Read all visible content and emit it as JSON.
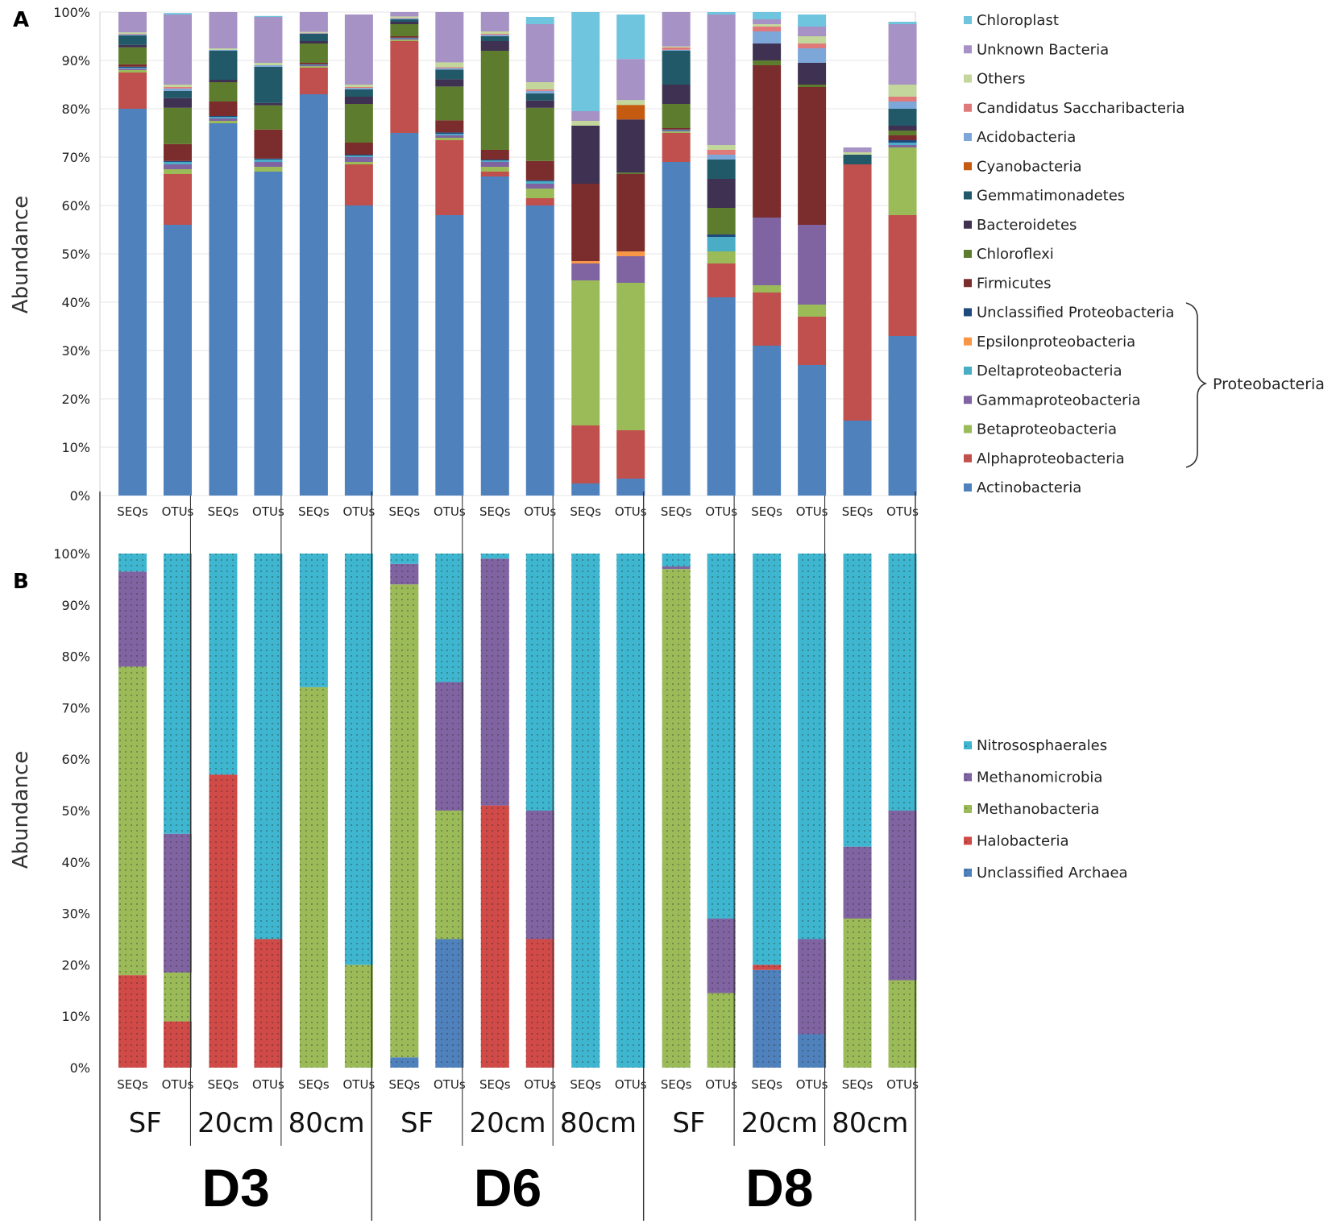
{
  "panels": {
    "a_label": "A",
    "b_label": "B"
  },
  "groups": {
    "depths": [
      "SF",
      "20cm",
      "80cm",
      "SF",
      "20cm",
      "80cm",
      "SF",
      "20cm",
      "80cm"
    ],
    "sites": [
      "D3",
      "D6",
      "D8"
    ],
    "bar_labels": [
      "SEQs",
      "OTUs"
    ]
  },
  "brace_label": "Proteobacteria",
  "chart_data": [
    {
      "type": "bar",
      "stacked": true,
      "panel": "A",
      "ylabel": "Abundance",
      "ylim": [
        0,
        100
      ],
      "yticks": [
        "0%",
        "10%",
        "20%",
        "30%",
        "40%",
        "50%",
        "60%",
        "70%",
        "80%",
        "90%",
        "100%"
      ],
      "categories": [
        "SEQs",
        "OTUs",
        "SEQs",
        "OTUs",
        "SEQs",
        "OTUs",
        "SEQs",
        "OTUs",
        "SEQs",
        "OTUs",
        "SEQs",
        "OTUs",
        "SEQs",
        "OTUs",
        "SEQs",
        "OTUs",
        "SEQs",
        "OTUs"
      ],
      "legend": [
        "Chloroplast",
        "Unknown  Bacteria",
        "Others",
        "Candidatus Saccharibacteria",
        "Acidobacteria",
        "Cyanobacteria",
        "Gemmatimonadetes",
        "Bacteroidetes",
        "Chloroflexi",
        "Firmicutes",
        "Unclassified Proteobacteria",
        "Epsilonproteobacteria",
        "Deltaproteobacteria",
        "Gammaproteobacteria",
        "Betaproteobacteria",
        "Alphaproteobacteria",
        "Actinobacteria"
      ],
      "series": [
        {
          "name": "Actinobacteria",
          "color": "#4f81bd",
          "values": [
            80,
            56,
            77,
            67,
            83,
            60,
            75,
            58,
            66,
            60,
            2.5,
            3.5,
            69,
            41,
            31,
            27,
            15.5,
            33
          ]
        },
        {
          "name": "Alphaproteobacteria",
          "color": "#c0504d",
          "values": [
            7.5,
            10.5,
            0,
            0,
            5.5,
            8.5,
            19,
            15.5,
            1,
            1.5,
            12,
            10,
            6,
            7,
            11,
            10,
            53,
            25
          ]
        },
        {
          "name": "Betaproteobacteria",
          "color": "#9bbb59",
          "values": [
            0.5,
            1,
            0.5,
            1,
            0.3,
            0.5,
            0.3,
            0.5,
            1,
            2,
            30,
            30.5,
            0.3,
            2.5,
            1.5,
            2.5,
            0,
            14
          ]
        },
        {
          "name": "Gammaproteobacteria",
          "color": "#8064a2",
          "values": [
            0.3,
            1,
            0.5,
            1,
            0.2,
            1,
            0.2,
            0.5,
            1,
            1,
            3.5,
            5.5,
            0.2,
            0,
            14,
            16.5,
            0,
            0.5
          ]
        },
        {
          "name": "Deltaproteobacteria",
          "color": "#4bacc6",
          "values": [
            0.2,
            0.5,
            0.3,
            0.5,
            0.1,
            0.3,
            0.1,
            0.3,
            0.3,
            0.5,
            0,
            0,
            0.1,
            3,
            0,
            0,
            0,
            0.5
          ]
        },
        {
          "name": "Epsilonproteobacteria",
          "color": "#f79646",
          "values": [
            0,
            0,
            0,
            0,
            0,
            0,
            0,
            0,
            0,
            0,
            0.5,
            1,
            0,
            0,
            0,
            0,
            0,
            0
          ]
        },
        {
          "name": "Unclassified Proteobacteria",
          "color": "#1f497d",
          "values": [
            0.2,
            0.2,
            0.2,
            0.2,
            0.1,
            0.2,
            0.1,
            0.3,
            0.2,
            0.2,
            0,
            0,
            0.1,
            0.5,
            0,
            0,
            0,
            0.5
          ]
        },
        {
          "name": "Firmicutes",
          "color": "#7b2c2c",
          "values": [
            0.5,
            3.5,
            3,
            6,
            0.3,
            2.5,
            0.3,
            2.5,
            2,
            4,
            16,
            16,
            0.3,
            0,
            31.5,
            28.5,
            0,
            1
          ]
        },
        {
          "name": "Chloroflexi",
          "color": "#5e7c2e",
          "values": [
            3.5,
            7.5,
            4,
            5,
            4,
            8,
            2.5,
            7,
            20.5,
            11,
            0,
            0.3,
            5,
            5.5,
            1,
            0.5,
            0,
            1
          ]
        },
        {
          "name": "Bacteroidetes",
          "color": "#3f3151",
          "values": [
            0.5,
            2,
            0.5,
            0.5,
            0.5,
            1.5,
            0.5,
            1.5,
            2,
            1.5,
            12,
            11,
            4,
            6,
            3.5,
            4.5,
            0,
            1
          ]
        },
        {
          "name": "Gemmatimonadetes",
          "color": "#215968",
          "values": [
            2,
            1.5,
            6,
            7.5,
            1.5,
            1.5,
            0.5,
            2,
            1,
            1.5,
            0,
            0,
            7,
            4,
            0,
            0,
            2,
            3.5
          ]
        },
        {
          "name": "Cyanobacteria",
          "color": "#c55a11",
          "values": [
            0,
            0,
            0,
            0,
            0,
            0,
            0,
            0,
            0,
            0,
            0,
            3,
            0,
            0,
            0,
            0,
            0,
            0
          ]
        },
        {
          "name": "Acidobacteria",
          "color": "#7da7d9",
          "values": [
            0.2,
            0.5,
            0.2,
            0.3,
            0.1,
            0.3,
            0.2,
            0.3,
            0.3,
            0.5,
            0,
            0,
            0.2,
            1,
            2.5,
            3,
            0,
            1.5
          ]
        },
        {
          "name": "Candidatus Saccharibacteria",
          "color": "#e07a7a",
          "values": [
            0.1,
            0.3,
            0,
            0,
            0.1,
            0.2,
            0.1,
            0.2,
            0.2,
            0.3,
            0,
            0,
            0.5,
            1,
            1,
            1,
            0,
            1
          ]
        },
        {
          "name": "Others",
          "color": "#c3d69b",
          "values": [
            0.3,
            0.5,
            0.3,
            0.5,
            0.2,
            0.5,
            0.3,
            1,
            0.5,
            1.5,
            1,
            1,
            0.2,
            1,
            0.5,
            1.5,
            0.5,
            2.5
          ]
        },
        {
          "name": "Unknown  Bacteria",
          "color": "#a692c4",
          "values": [
            4.2,
            14.5,
            7.5,
            9.5,
            4.4,
            14.5,
            1.6,
            10.9,
            4,
            12,
            2,
            8.5,
            7.1,
            27,
            1,
            2,
            1,
            12.5
          ]
        },
        {
          "name": "Chloroplast",
          "color": "#6ec5dd",
          "values": [
            0,
            0.3,
            0,
            0.2,
            0.1,
            0,
            0.2,
            0.5,
            0,
            1.5,
            20.5,
            9.2,
            0.1,
            0.5,
            2.5,
            2.5,
            0,
            0.5
          ]
        }
      ]
    },
    {
      "type": "bar",
      "stacked": true,
      "panel": "B",
      "ylabel": "Abundance",
      "ylim": [
        0,
        100
      ],
      "yticks": [
        "0%",
        "10%",
        "20%",
        "30%",
        "40%",
        "50%",
        "60%",
        "70%",
        "80%",
        "90%",
        "100%"
      ],
      "categories": [
        "SEQs",
        "OTUs",
        "SEQs",
        "OTUs",
        "SEQs",
        "OTUs",
        "SEQs",
        "OTUs",
        "SEQs",
        "OTUs",
        "SEQs",
        "OTUs",
        "SEQs",
        "OTUs",
        "SEQs",
        "OTUs",
        "SEQs",
        "OTUs"
      ],
      "legend": [
        "Nitrososphaerales",
        "Methanomicrobia",
        "Methanobacteria",
        "Halobacteria",
        "Unclassified Archaea"
      ],
      "series": [
        {
          "name": "Unclassified Archaea",
          "color": "#4f81bd",
          "values": [
            0,
            0,
            0,
            0,
            0,
            0,
            2,
            25,
            0,
            0,
            0,
            0,
            0,
            0,
            19,
            6.5,
            0,
            0
          ]
        },
        {
          "name": "Halobacteria",
          "color": "#d04a47",
          "values": [
            18,
            9,
            57,
            25,
            0,
            0,
            0,
            0,
            51,
            25,
            0,
            0,
            0,
            0,
            1,
            0,
            0,
            0
          ]
        },
        {
          "name": "Methanobacteria",
          "color": "#9bbb59",
          "values": [
            60,
            9.5,
            0,
            0,
            74,
            20,
            92,
            25,
            0,
            0,
            0,
            0,
            97,
            14.5,
            0,
            0,
            29,
            17
          ]
        },
        {
          "name": "Methanomicrobia",
          "color": "#8064a2",
          "values": [
            18.5,
            27,
            0,
            0,
            0,
            0,
            4,
            25,
            48,
            25,
            0,
            0,
            0.5,
            14.5,
            0,
            18.5,
            14,
            33
          ]
        },
        {
          "name": "Nitrososphaerales",
          "color": "#3fb6cf",
          "values": [
            3.5,
            54.5,
            43,
            75,
            26,
            80,
            2,
            25,
            1,
            50,
            100,
            100,
            2.5,
            71,
            80,
            75,
            57,
            50
          ]
        }
      ]
    }
  ]
}
